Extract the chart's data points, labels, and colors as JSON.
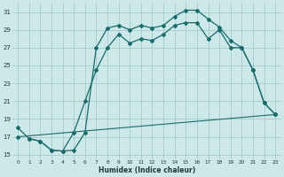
{
  "xlabel": "Humidex (Indice chaleur)",
  "xlim": [
    -0.5,
    23.5
  ],
  "ylim": [
    14.5,
    32.0
  ],
  "yticks": [
    15,
    17,
    19,
    21,
    23,
    25,
    27,
    29,
    31
  ],
  "xticks": [
    0,
    1,
    2,
    3,
    4,
    5,
    6,
    7,
    8,
    9,
    10,
    11,
    12,
    13,
    14,
    15,
    16,
    17,
    18,
    19,
    20,
    21,
    22,
    23
  ],
  "bg_color": "#cde8e8",
  "grid_color": "#aacfcf",
  "line_color": "#1a6b6b",
  "curve1_x": [
    0,
    1,
    2,
    3,
    4,
    5,
    6,
    7,
    8,
    9,
    10,
    11,
    12,
    13,
    14,
    15,
    16,
    17,
    18,
    19,
    20,
    21,
    22,
    23
  ],
  "curve1_y": [
    18.0,
    16.8,
    16.5,
    15.5,
    15.4,
    15.5,
    17.5,
    27.0,
    29.2,
    29.5,
    29.0,
    29.5,
    29.2,
    29.5,
    30.5,
    31.2,
    31.2,
    30.2,
    29.3,
    27.8,
    27.0,
    24.5,
    20.8,
    19.5
  ],
  "curve2_x": [
    1,
    2,
    3,
    4,
    5,
    6,
    7,
    8,
    9,
    10,
    11,
    12,
    13,
    14,
    15,
    16,
    17,
    18,
    19,
    20,
    21,
    22,
    23
  ],
  "curve2_y": [
    16.8,
    16.5,
    15.5,
    15.4,
    17.5,
    21.0,
    24.5,
    27.0,
    28.5,
    27.5,
    28.0,
    27.8,
    28.5,
    29.5,
    29.8,
    29.8,
    28.0,
    29.0,
    27.0,
    27.0,
    24.5,
    20.8,
    19.5
  ],
  "curve3_x": [
    0,
    23
  ],
  "curve3_y": [
    17.0,
    19.5
  ]
}
